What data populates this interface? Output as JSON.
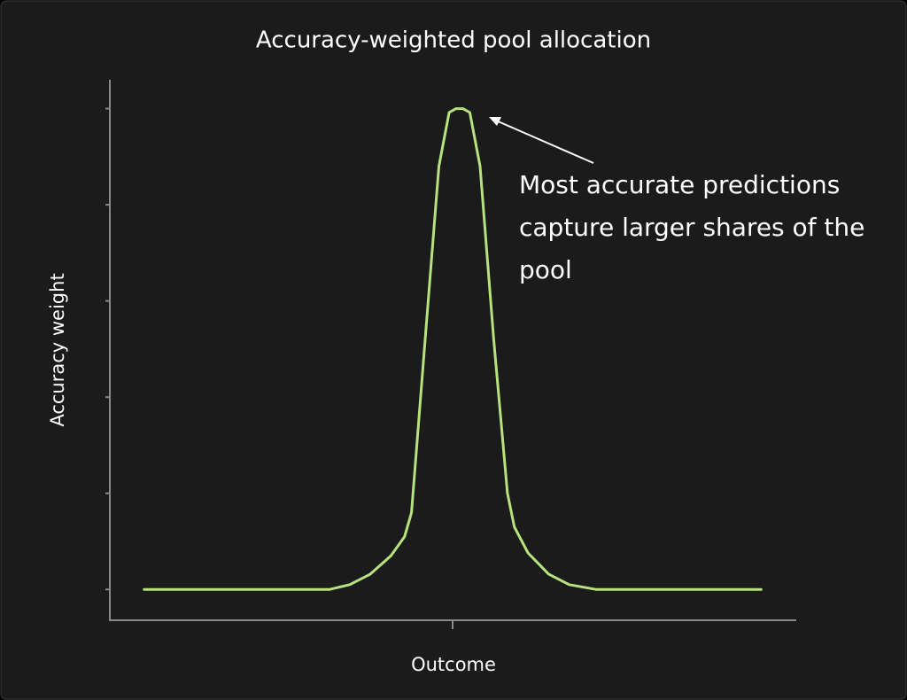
{
  "chart_data": {
    "type": "line",
    "title": "Accuracy-weighted pool allocation",
    "x_label": "Outcome",
    "y_label": "Accuracy weight",
    "annotation": [
      "Most accurate predictions",
      "capture larger shares of the",
      "pool"
    ],
    "x": [
      5,
      32,
      35,
      38,
      41,
      43,
      44,
      46,
      48,
      49.5,
      50.5,
      51.5,
      52.5,
      54,
      56,
      58,
      59,
      61,
      64,
      67,
      71,
      95
    ],
    "values": [
      0,
      0,
      0.05,
      0.16,
      0.35,
      0.55,
      0.8,
      2.6,
      4.4,
      4.96,
      5,
      5,
      4.96,
      4.4,
      2.6,
      1.0,
      0.65,
      0.38,
      0.16,
      0.05,
      0,
      0
    ],
    "color": "#b8e27d",
    "xlim": [
      0,
      100
    ],
    "xticks": [
      50
    ],
    "ylim": [
      -0.32,
      5.3
    ],
    "yticks": [
      0,
      1,
      2,
      3,
      4,
      5
    ]
  }
}
